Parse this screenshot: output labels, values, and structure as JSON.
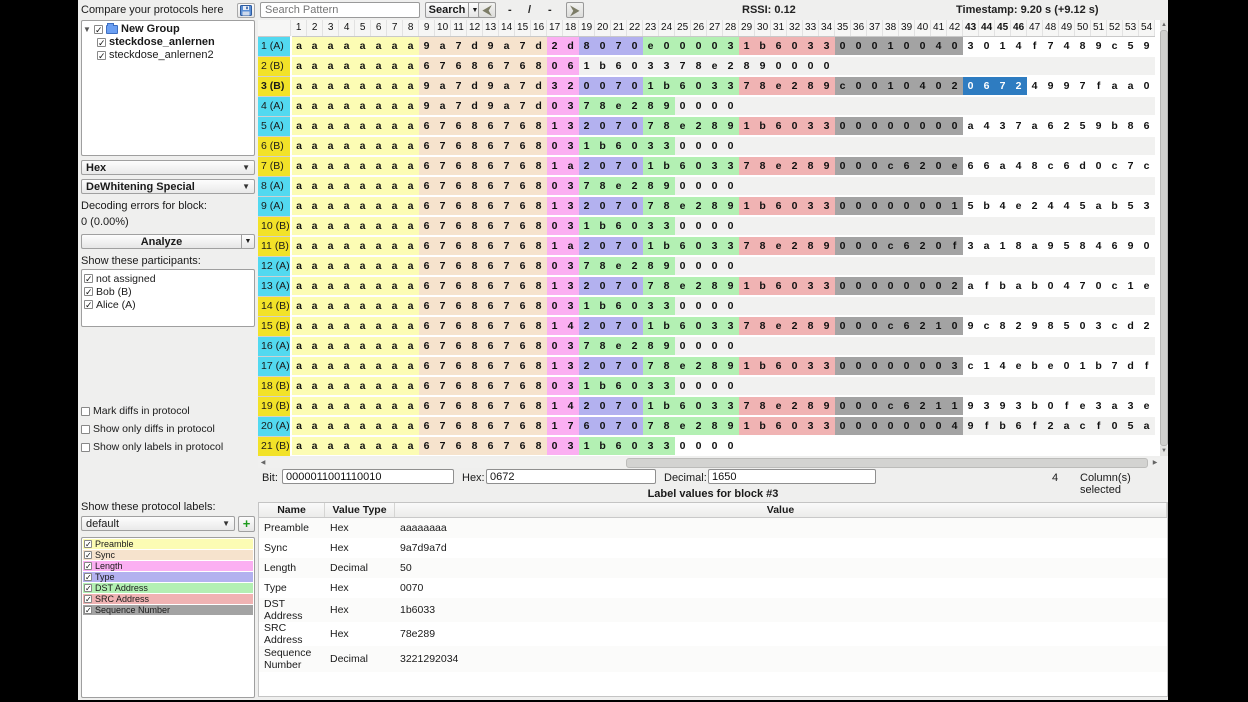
{
  "topbar": {
    "search_placeholder": "Search Pattern",
    "search_button": "Search",
    "nav_prev": "-",
    "nav_sep": "/",
    "nav_next": "-",
    "rssi": "RSSI:  0.12",
    "timestamp": "Timestamp:  9.20 s (+9.12 s)"
  },
  "left_panel": {
    "compare_label": "Compare your protocols here",
    "save_icon": "floppy-disk",
    "tree": {
      "group_label": "New Group",
      "children": [
        "steckdose_anlernen",
        "steckdose_anlernen2"
      ]
    },
    "view_combo": "Hex",
    "decoding_combo": "DeWhitening Special",
    "decoding_errors_label": "Decoding errors for block:",
    "decoding_errors_value": "0 (0.00%)",
    "analyze_button": "Analyze",
    "participants_label": "Show these participants:",
    "participants": [
      "not assigned",
      "Bob (B)",
      "Alice (A)"
    ],
    "diff_checkboxes": [
      "Mark diffs in protocol",
      "Show only diffs in protocol",
      "Show only labels in protocol"
    ],
    "labels_title": "Show these protocol labels:",
    "labelset_combo": "default",
    "add_label_button": "+",
    "protocol_labels": [
      {
        "name": "Preamble",
        "key": "preamble"
      },
      {
        "name": "Sync",
        "key": "sync"
      },
      {
        "name": "Length",
        "key": "length"
      },
      {
        "name": "Type",
        "key": "type"
      },
      {
        "name": "DST Address",
        "key": "dst"
      },
      {
        "name": "SRC Address",
        "key": "src"
      },
      {
        "name": "Sequence Number",
        "key": "seq"
      }
    ]
  },
  "label_colors": {
    "preamble": "#fcfcb4",
    "sync": "#f6e3cd",
    "length": "#fbaff2",
    "type": "#b3b1ef",
    "dst": "#b3f0b3",
    "src": "#f0b3b3",
    "seq": "#a3a3a3",
    "sel": "#2e7cc1"
  },
  "participant_colors": {
    "A": "#52d9f0",
    "B": "#f2e228"
  },
  "hex_table": {
    "column_count": 54,
    "bold_columns": [
      43,
      44,
      45,
      46
    ],
    "plain_even_color": "#f1f1f0",
    "rows": [
      {
        "header": "1 (A)",
        "participant": "A",
        "bold": false,
        "segments": [
          [
            "preamble",
            "aaaaaaaa"
          ],
          [
            "sync",
            "9a7d9a7d"
          ],
          [
            "length",
            "2d"
          ],
          [
            "type",
            "8070"
          ],
          [
            "dst",
            "e00003"
          ],
          [
            "src",
            "1b6033"
          ],
          [
            "seq",
            "00010040"
          ],
          [
            "plain",
            "3014f7489c59"
          ]
        ]
      },
      {
        "header": "2 (B)",
        "participant": "B",
        "bold": false,
        "segments": [
          [
            "preamble",
            "aaaaaaaa"
          ],
          [
            "sync",
            "67686768"
          ],
          [
            "length",
            "06"
          ],
          [
            "plain",
            "1b603378e2890000"
          ]
        ]
      },
      {
        "header": "3 (B)",
        "participant": "B",
        "bold": true,
        "segments": [
          [
            "preamble",
            "aaaaaaaa"
          ],
          [
            "sync",
            "9a7d9a7d"
          ],
          [
            "length",
            "32"
          ],
          [
            "type",
            "0070"
          ],
          [
            "dst",
            "1b6033"
          ],
          [
            "src",
            "78e289"
          ],
          [
            "seq",
            "c0010402"
          ],
          [
            "sel",
            "0672"
          ],
          [
            "plain",
            "4997faa0"
          ]
        ]
      },
      {
        "header": "4 (A)",
        "participant": "A",
        "bold": false,
        "segments": [
          [
            "preamble",
            "aaaaaaaa"
          ],
          [
            "sync",
            "9a7d9a7d"
          ],
          [
            "length",
            "03"
          ],
          [
            "dst",
            "78e289"
          ],
          [
            "plain",
            "0000"
          ]
        ]
      },
      {
        "header": "5 (A)",
        "participant": "A",
        "bold": false,
        "segments": [
          [
            "preamble",
            "aaaaaaaa"
          ],
          [
            "sync",
            "67686768"
          ],
          [
            "length",
            "13"
          ],
          [
            "type",
            "2070"
          ],
          [
            "dst",
            "78e289"
          ],
          [
            "src",
            "1b6033"
          ],
          [
            "seq",
            "00000000"
          ],
          [
            "plain",
            "a437a6259b86"
          ]
        ]
      },
      {
        "header": "6 (B)",
        "participant": "B",
        "bold": false,
        "segments": [
          [
            "preamble",
            "aaaaaaaa"
          ],
          [
            "sync",
            "67686768"
          ],
          [
            "length",
            "03"
          ],
          [
            "dst",
            "1b6033"
          ],
          [
            "plain",
            "0000"
          ]
        ]
      },
      {
        "header": "7 (B)",
        "participant": "B",
        "bold": false,
        "segments": [
          [
            "preamble",
            "aaaaaaaa"
          ],
          [
            "sync",
            "67686768"
          ],
          [
            "length",
            "1a"
          ],
          [
            "type",
            "2070"
          ],
          [
            "dst",
            "1b6033"
          ],
          [
            "src",
            "78e289"
          ],
          [
            "seq",
            "000c620e"
          ],
          [
            "plain",
            "66a48c6d0c7c"
          ]
        ]
      },
      {
        "header": "8 (A)",
        "participant": "A",
        "bold": false,
        "segments": [
          [
            "preamble",
            "aaaaaaaa"
          ],
          [
            "sync",
            "67686768"
          ],
          [
            "length",
            "03"
          ],
          [
            "dst",
            "78e289"
          ],
          [
            "plain",
            "0000"
          ]
        ]
      },
      {
        "header": "9 (A)",
        "participant": "A",
        "bold": false,
        "segments": [
          [
            "preamble",
            "aaaaaaaa"
          ],
          [
            "sync",
            "67686768"
          ],
          [
            "length",
            "13"
          ],
          [
            "type",
            "2070"
          ],
          [
            "dst",
            "78e289"
          ],
          [
            "src",
            "1b6033"
          ],
          [
            "seq",
            "00000001"
          ],
          [
            "plain",
            "5b4e2445ab53"
          ]
        ]
      },
      {
        "header": "10 (B)",
        "participant": "B",
        "bold": false,
        "segments": [
          [
            "preamble",
            "aaaaaaaa"
          ],
          [
            "sync",
            "67686768"
          ],
          [
            "length",
            "03"
          ],
          [
            "dst",
            "1b6033"
          ],
          [
            "plain",
            "0000"
          ]
        ]
      },
      {
        "header": "11 (B)",
        "participant": "B",
        "bold": false,
        "segments": [
          [
            "preamble",
            "aaaaaaaa"
          ],
          [
            "sync",
            "67686768"
          ],
          [
            "length",
            "1a"
          ],
          [
            "type",
            "2070"
          ],
          [
            "dst",
            "1b6033"
          ],
          [
            "src",
            "78e289"
          ],
          [
            "seq",
            "000c620f"
          ],
          [
            "plain",
            "3a18a9584690"
          ]
        ]
      },
      {
        "header": "12 (A)",
        "participant": "A",
        "bold": false,
        "segments": [
          [
            "preamble",
            "aaaaaaaa"
          ],
          [
            "sync",
            "67686768"
          ],
          [
            "length",
            "03"
          ],
          [
            "dst",
            "78e289"
          ],
          [
            "plain",
            "0000"
          ]
        ]
      },
      {
        "header": "13 (A)",
        "participant": "A",
        "bold": false,
        "segments": [
          [
            "preamble",
            "aaaaaaaa"
          ],
          [
            "sync",
            "67686768"
          ],
          [
            "length",
            "13"
          ],
          [
            "type",
            "2070"
          ],
          [
            "dst",
            "78e289"
          ],
          [
            "src",
            "1b6033"
          ],
          [
            "seq",
            "00000002"
          ],
          [
            "plain",
            "afbab0470c1e"
          ]
        ]
      },
      {
        "header": "14 (B)",
        "participant": "B",
        "bold": false,
        "segments": [
          [
            "preamble",
            "aaaaaaaa"
          ],
          [
            "sync",
            "67686768"
          ],
          [
            "length",
            "03"
          ],
          [
            "dst",
            "1b6033"
          ],
          [
            "plain",
            "0000"
          ]
        ]
      },
      {
        "header": "15 (B)",
        "participant": "B",
        "bold": false,
        "segments": [
          [
            "preamble",
            "aaaaaaaa"
          ],
          [
            "sync",
            "67686768"
          ],
          [
            "length",
            "14"
          ],
          [
            "type",
            "2070"
          ],
          [
            "dst",
            "1b6033"
          ],
          [
            "src",
            "78e289"
          ],
          [
            "seq",
            "000c6210"
          ],
          [
            "plain",
            "9c8298503cd2"
          ]
        ]
      },
      {
        "header": "16 (A)",
        "participant": "A",
        "bold": false,
        "segments": [
          [
            "preamble",
            "aaaaaaaa"
          ],
          [
            "sync",
            "67686768"
          ],
          [
            "length",
            "03"
          ],
          [
            "dst",
            "78e289"
          ],
          [
            "plain",
            "0000"
          ]
        ]
      },
      {
        "header": "17 (A)",
        "participant": "A",
        "bold": false,
        "segments": [
          [
            "preamble",
            "aaaaaaaa"
          ],
          [
            "sync",
            "67686768"
          ],
          [
            "length",
            "13"
          ],
          [
            "type",
            "2070"
          ],
          [
            "dst",
            "78e289"
          ],
          [
            "src",
            "1b6033"
          ],
          [
            "seq",
            "00000003"
          ],
          [
            "plain",
            "c14ebe01b7df"
          ]
        ]
      },
      {
        "header": "18 (B)",
        "participant": "B",
        "bold": false,
        "segments": [
          [
            "preamble",
            "aaaaaaaa"
          ],
          [
            "sync",
            "67686768"
          ],
          [
            "length",
            "03"
          ],
          [
            "dst",
            "1b6033"
          ],
          [
            "plain",
            "0000"
          ]
        ]
      },
      {
        "header": "19 (B)",
        "participant": "B",
        "bold": false,
        "segments": [
          [
            "preamble",
            "aaaaaaaa"
          ],
          [
            "sync",
            "67686768"
          ],
          [
            "length",
            "14"
          ],
          [
            "type",
            "2070"
          ],
          [
            "dst",
            "1b6033"
          ],
          [
            "src",
            "78e289"
          ],
          [
            "seq",
            "000c6211"
          ],
          [
            "plain",
            "9393b0fe3a3e"
          ]
        ]
      },
      {
        "header": "20 (A)",
        "participant": "A",
        "bold": false,
        "segments": [
          [
            "preamble",
            "aaaaaaaa"
          ],
          [
            "sync",
            "67686768"
          ],
          [
            "length",
            "17"
          ],
          [
            "type",
            "6070"
          ],
          [
            "dst",
            "78e289"
          ],
          [
            "src",
            "1b6033"
          ],
          [
            "seq",
            "00000004"
          ],
          [
            "plain",
            "9fb6f2acf05a"
          ]
        ]
      },
      {
        "header": "21 (B)",
        "participant": "B",
        "bold": false,
        "segments": [
          [
            "preamble",
            "aaaaaaaa"
          ],
          [
            "sync",
            "67686768"
          ],
          [
            "length",
            "03"
          ],
          [
            "dst",
            "1b6033"
          ],
          [
            "plain",
            "0000"
          ]
        ]
      }
    ]
  },
  "status_bar": {
    "bit_label": "Bit:",
    "bit_value": "0000011001110010",
    "hex_label": "Hex:",
    "hex_value": "0672",
    "decimal_label": "Decimal:",
    "decimal_value": "1650",
    "selected_count": "4",
    "selected_label": "Column(s) selected"
  },
  "block_panel": {
    "title": "Label values for block #3",
    "columns": [
      "Name",
      "Value Type",
      "Value"
    ],
    "rows": [
      {
        "name": "Preamble",
        "type": "Hex",
        "value": "aaaaaaaa"
      },
      {
        "name": "Sync",
        "type": "Hex",
        "value": "9a7d9a7d"
      },
      {
        "name": "Length",
        "type": "Decimal",
        "value": "50"
      },
      {
        "name": "Type",
        "type": "Hex",
        "value": "0070"
      },
      {
        "name": "DST Address",
        "type": "Hex",
        "value": "1b6033"
      },
      {
        "name": "SRC Address",
        "type": "Hex",
        "value": "78e289"
      },
      {
        "name": "Sequence Number",
        "type": "Decimal",
        "value": "3221292034"
      }
    ]
  }
}
